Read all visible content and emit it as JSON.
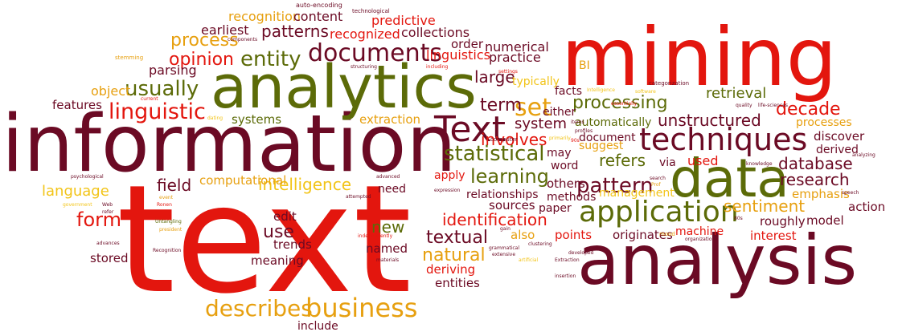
{
  "palette": {
    "red": "#e3160e",
    "maroon": "#6b0a24",
    "olive": "#5c6b08",
    "orange": "#e7a010",
    "gold": "#f2c418"
  },
  "words": [
    {
      "text": "text",
      "color": "red"
    },
    {
      "text": "information",
      "color": "maroon"
    },
    {
      "text": "analytics",
      "color": "olive"
    },
    {
      "text": "mining",
      "color": "red"
    },
    {
      "text": "analysis",
      "color": "maroon"
    },
    {
      "text": "data",
      "color": "olive"
    },
    {
      "text": "Text",
      "color": "maroon"
    },
    {
      "text": "techniques",
      "color": "maroon"
    },
    {
      "text": "application",
      "color": "olive"
    },
    {
      "text": "business",
      "color": "orange"
    },
    {
      "text": "describes",
      "color": "orange"
    },
    {
      "text": "documents",
      "color": "maroon"
    },
    {
      "text": "entity",
      "color": "olive"
    },
    {
      "text": "linguistic",
      "color": "red"
    },
    {
      "text": "usually",
      "color": "olive"
    },
    {
      "text": "statistical",
      "color": "olive"
    },
    {
      "text": "learning",
      "color": "olive"
    },
    {
      "text": "pattern",
      "color": "maroon"
    },
    {
      "text": "set",
      "color": "orange"
    },
    {
      "text": "term",
      "color": "maroon"
    },
    {
      "text": "processing",
      "color": "olive"
    },
    {
      "text": "unstructured",
      "color": "maroon"
    },
    {
      "text": "decade",
      "color": "red"
    },
    {
      "text": "research",
      "color": "maroon"
    },
    {
      "text": "natural",
      "color": "orange"
    },
    {
      "text": "textual",
      "color": "maroon"
    },
    {
      "text": "identification",
      "color": "red"
    },
    {
      "text": "intelligence",
      "color": "gold"
    },
    {
      "text": "form",
      "color": "red"
    },
    {
      "text": "field",
      "color": "maroon"
    },
    {
      "text": "use",
      "color": "maroon"
    },
    {
      "text": "opinion",
      "color": "red"
    },
    {
      "text": "process",
      "color": "orange"
    },
    {
      "text": "patterns",
      "color": "maroon"
    },
    {
      "text": "involves",
      "color": "red"
    },
    {
      "text": "system",
      "color": "maroon"
    },
    {
      "text": "refers",
      "color": "olive"
    },
    {
      "text": "retrieval",
      "color": "olive"
    },
    {
      "text": "database",
      "color": "maroon"
    },
    {
      "text": "sentiment",
      "color": "orange"
    },
    {
      "text": "large",
      "color": "maroon"
    },
    {
      "text": "new",
      "color": "olive"
    },
    {
      "text": "language",
      "color": "gold"
    },
    {
      "text": "recognized",
      "color": "red"
    },
    {
      "text": "predictive",
      "color": "red"
    },
    {
      "text": "recognition",
      "color": "orange"
    },
    {
      "text": "linguistics",
      "color": "red"
    },
    {
      "text": "parsing",
      "color": "maroon"
    },
    {
      "text": "earliest",
      "color": "maroon"
    },
    {
      "text": "content",
      "color": "maroon"
    },
    {
      "text": "collections",
      "color": "maroon"
    },
    {
      "text": "numerical",
      "color": "maroon"
    },
    {
      "text": "practice",
      "color": "maroon"
    },
    {
      "text": "order",
      "color": "maroon"
    },
    {
      "text": "object",
      "color": "orange"
    },
    {
      "text": "features",
      "color": "maroon"
    },
    {
      "text": "systems",
      "color": "olive"
    },
    {
      "text": "extraction",
      "color": "orange"
    },
    {
      "text": "computational",
      "color": "orange"
    },
    {
      "text": "edit",
      "color": "maroon"
    },
    {
      "text": "trends",
      "color": "maroon"
    },
    {
      "text": "meaning",
      "color": "maroon"
    },
    {
      "text": "stored",
      "color": "maroon"
    },
    {
      "text": "named",
      "color": "maroon"
    },
    {
      "text": "deriving",
      "color": "red"
    },
    {
      "text": "entities",
      "color": "maroon"
    },
    {
      "text": "include",
      "color": "maroon"
    },
    {
      "text": "also",
      "color": "orange"
    },
    {
      "text": "points",
      "color": "red"
    },
    {
      "text": "sources",
      "color": "maroon"
    },
    {
      "text": "paper",
      "color": "maroon"
    },
    {
      "text": "relationships",
      "color": "maroon"
    },
    {
      "text": "methods",
      "color": "maroon"
    },
    {
      "text": "originates",
      "color": "maroon"
    },
    {
      "text": "machine",
      "color": "red"
    },
    {
      "text": "interest",
      "color": "red"
    },
    {
      "text": "roughly",
      "color": "maroon"
    },
    {
      "text": "model",
      "color": "maroon"
    },
    {
      "text": "action",
      "color": "maroon"
    },
    {
      "text": "emphasis",
      "color": "orange"
    },
    {
      "text": "management",
      "color": "gold"
    },
    {
      "text": "others",
      "color": "maroon"
    },
    {
      "text": "word",
      "color": "maroon"
    },
    {
      "text": "apply",
      "color": "red"
    },
    {
      "text": "need",
      "color": "maroon"
    },
    {
      "text": "may",
      "color": "maroon"
    },
    {
      "text": "used",
      "color": "red"
    },
    {
      "text": "via",
      "color": "maroon"
    },
    {
      "text": "suggest",
      "color": "orange"
    },
    {
      "text": "document",
      "color": "maroon"
    },
    {
      "text": "automatically",
      "color": "olive"
    },
    {
      "text": "discover",
      "color": "maroon"
    },
    {
      "text": "derived",
      "color": "maroon"
    },
    {
      "text": "processes",
      "color": "orange"
    },
    {
      "text": "typically",
      "color": "gold"
    },
    {
      "text": "facts",
      "color": "maroon"
    },
    {
      "text": "either",
      "color": "maroon"
    },
    {
      "text": "BI",
      "color": "orange"
    },
    {
      "text": "auto-encoding",
      "color": "maroon"
    },
    {
      "text": "technological",
      "color": "maroon"
    },
    {
      "text": "components",
      "color": "maroon"
    },
    {
      "text": "stemming",
      "color": "orange"
    },
    {
      "text": "structuring",
      "color": "maroon"
    },
    {
      "text": "including",
      "color": "red"
    },
    {
      "text": "settings",
      "color": "red"
    },
    {
      "text": "current",
      "color": "red"
    },
    {
      "text": "dating",
      "color": "gold"
    },
    {
      "text": "Intelligence",
      "color": "gold"
    },
    {
      "text": "software",
      "color": "gold"
    },
    {
      "text": "categorization",
      "color": "maroon"
    },
    {
      "text": "essentially",
      "color": "red"
    },
    {
      "text": "quality",
      "color": "maroon"
    },
    {
      "text": "life-sciences",
      "color": "maroon"
    },
    {
      "text": "items",
      "color": "maroon"
    },
    {
      "text": "profiles",
      "color": "maroon"
    },
    {
      "text": "computer",
      "color": "maroon"
    },
    {
      "text": "primarily",
      "color": "gold"
    },
    {
      "text": "90s",
      "color": "red"
    },
    {
      "text": "search",
      "color": "maroon"
    },
    {
      "text": "Prof",
      "color": "orange"
    },
    {
      "text": "knowledge",
      "color": "maroon"
    },
    {
      "text": "analyzing",
      "color": "maroon"
    },
    {
      "text": "psychological",
      "color": "maroon"
    },
    {
      "text": "advanced",
      "color": "maroon"
    },
    {
      "text": "expression",
      "color": "maroon"
    },
    {
      "text": "event",
      "color": "orange"
    },
    {
      "text": "government",
      "color": "gold"
    },
    {
      "text": "Ronen",
      "color": "red"
    },
    {
      "text": "Web",
      "color": "maroon"
    },
    {
      "text": "refer",
      "color": "maroon"
    },
    {
      "text": "attempted",
      "color": "maroon"
    },
    {
      "text": "Untangling",
      "color": "olive"
    },
    {
      "text": "president",
      "color": "orange"
    },
    {
      "text": "advances",
      "color": "maroon"
    },
    {
      "text": "Recognition",
      "color": "maroon"
    },
    {
      "text": "independently",
      "color": "red"
    },
    {
      "text": "materials",
      "color": "maroon"
    },
    {
      "text": "grammatical",
      "color": "maroon"
    },
    {
      "text": "gain",
      "color": "maroon"
    },
    {
      "text": "clustering",
      "color": "maroon"
    },
    {
      "text": "extensive",
      "color": "maroon"
    },
    {
      "text": "artificial",
      "color": "gold"
    },
    {
      "text": "developed",
      "color": "maroon"
    },
    {
      "text": "Extraction",
      "color": "maroon"
    },
    {
      "text": "insertion",
      "color": "maroon"
    },
    {
      "text": "mood",
      "color": "orange"
    },
    {
      "text": "organizations",
      "color": "maroon"
    },
    {
      "text": "80s",
      "color": "maroon"
    },
    {
      "text": "speech",
      "color": "maroon"
    }
  ]
}
